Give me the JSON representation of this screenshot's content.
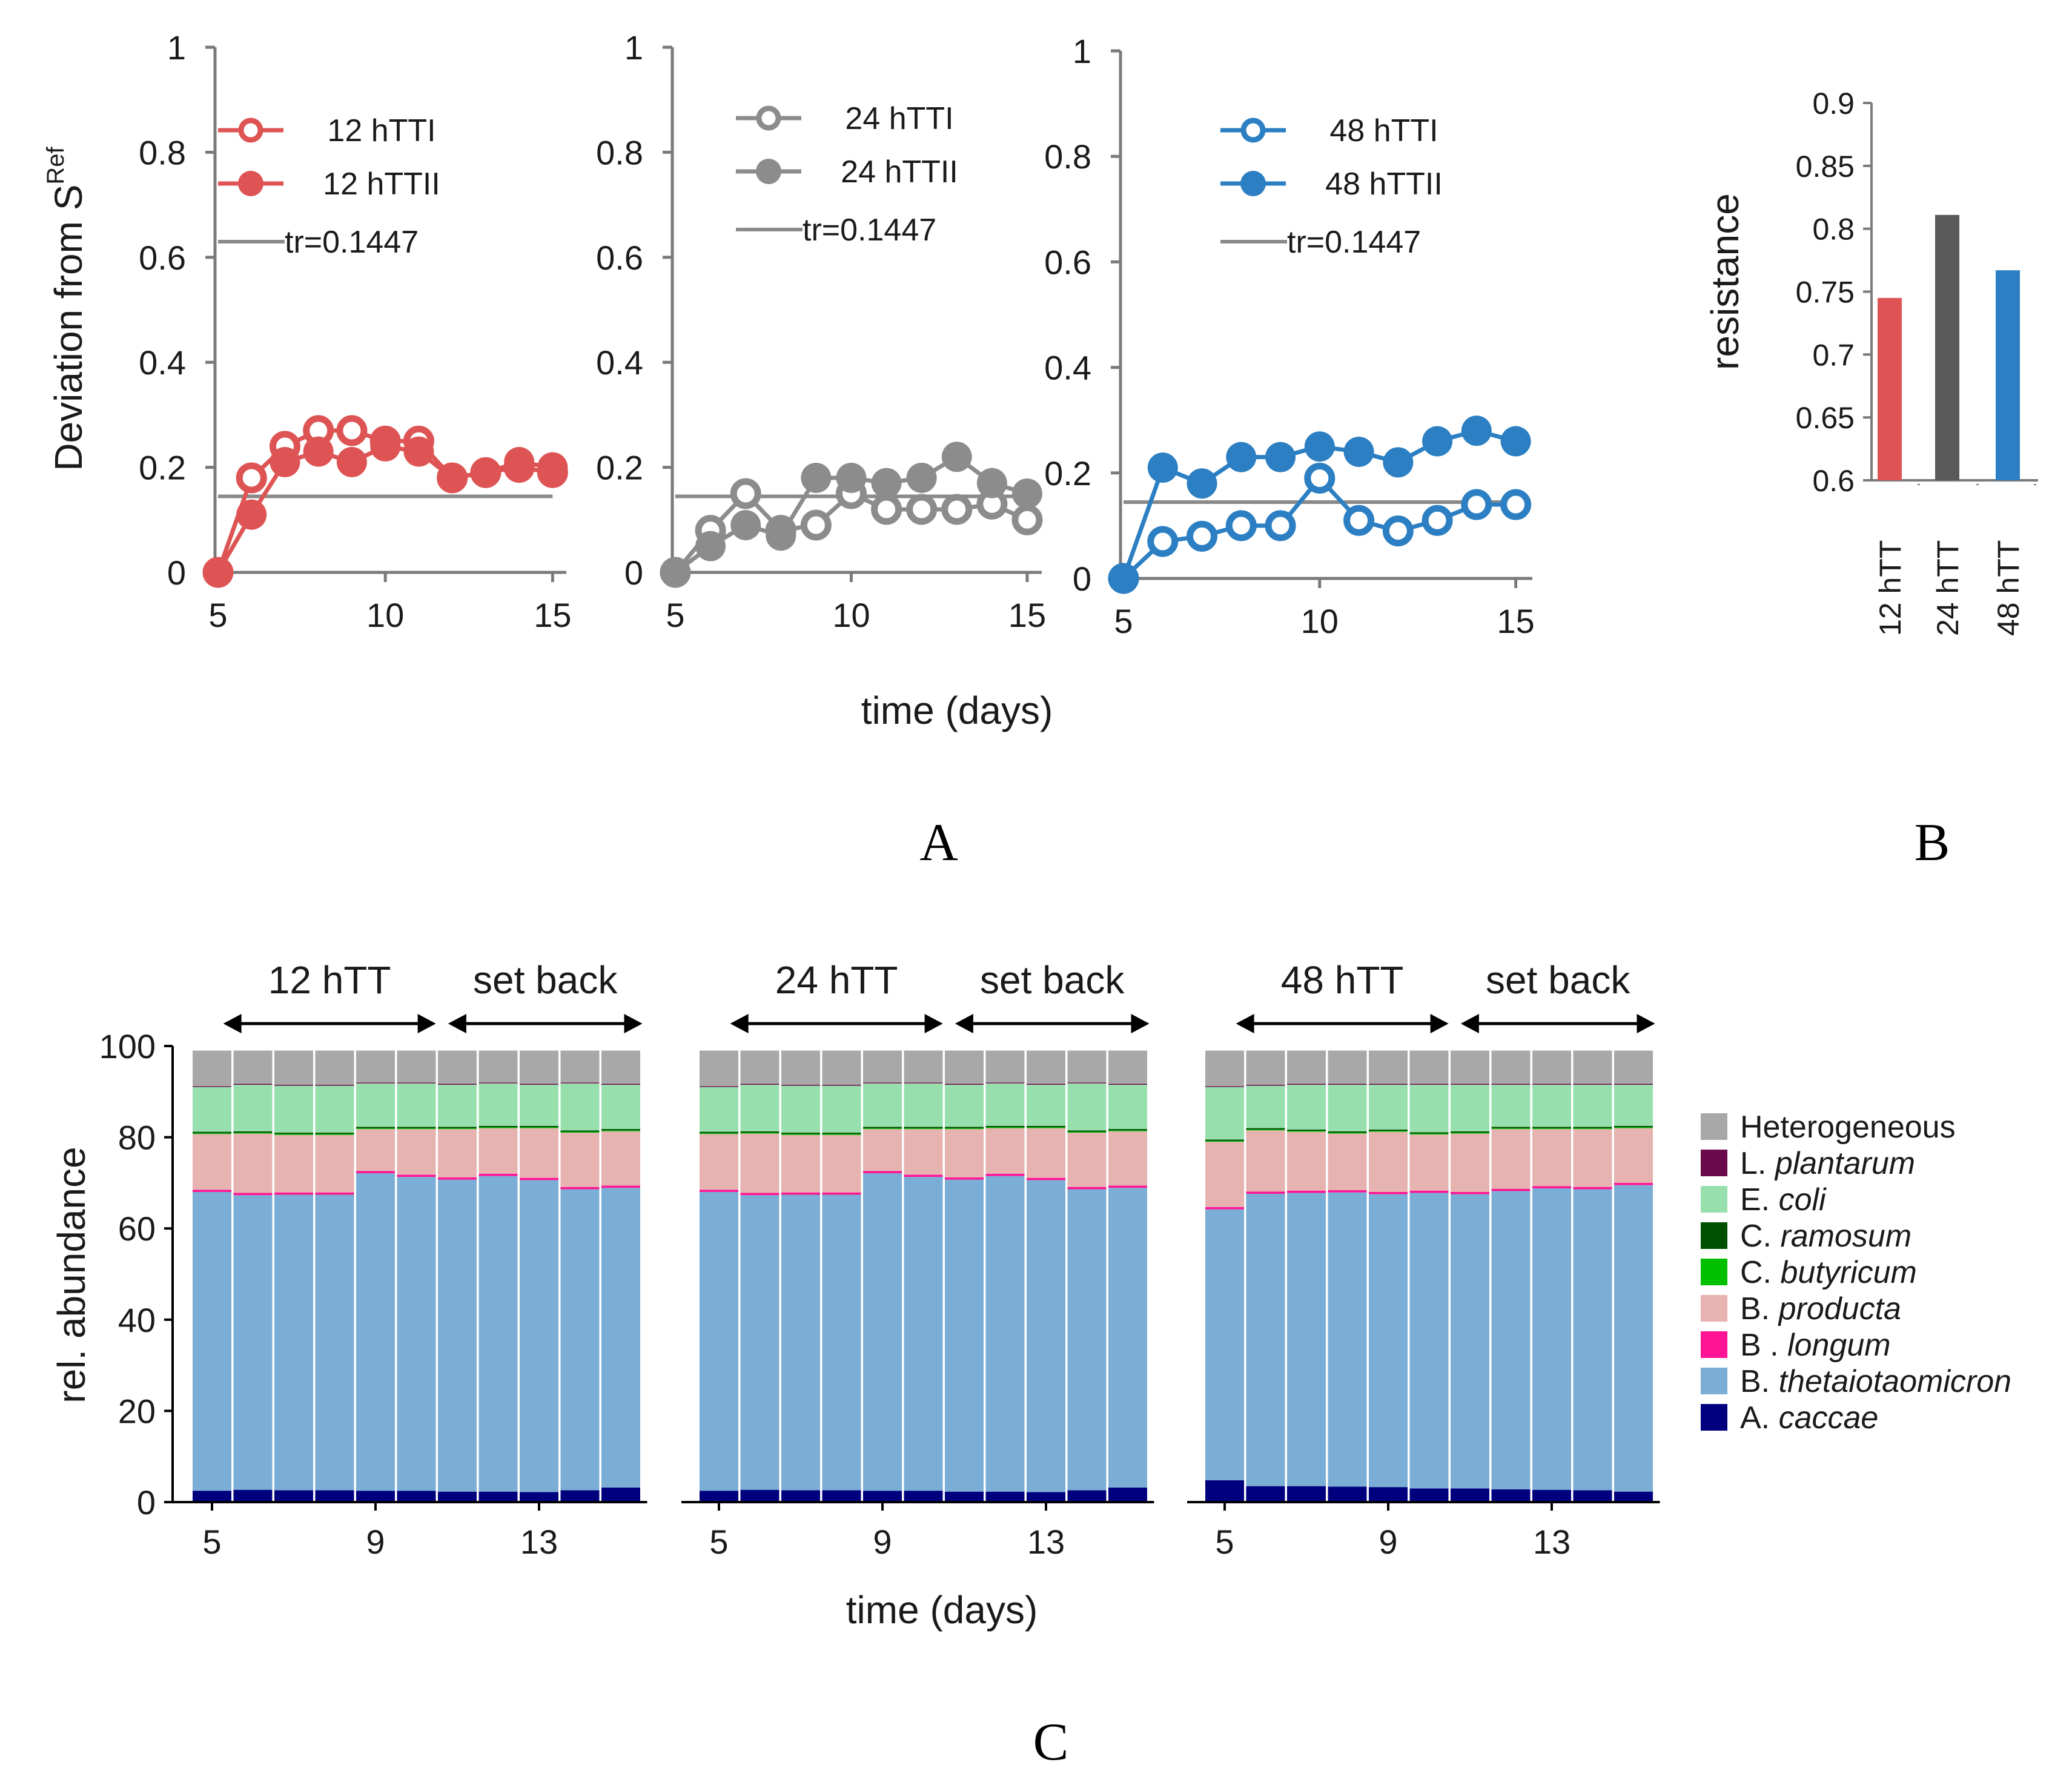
{
  "panel_letters": [
    "A",
    "B",
    "C"
  ],
  "threshold_label": "tr=0.1447",
  "chart_data": [
    {
      "type": "line",
      "panel": "A",
      "ylabel_main": "Deviation from S",
      "ylabel_sub": "Ref",
      "xlabel": "time (days)",
      "xlim": [
        5,
        15.5
      ],
      "ylim": [
        0,
        1
      ],
      "xticks": [
        5,
        10,
        15
      ],
      "yticks": [
        "0",
        "0.2",
        "0.4",
        "0.6",
        "0.8",
        "1"
      ],
      "threshold": 0.1447,
      "x": [
        5,
        6,
        7,
        8,
        9,
        10,
        11,
        12,
        13,
        14,
        15
      ],
      "subplots": [
        {
          "color": "#de5454",
          "series": [
            {
              "name": "12 hTTI",
              "marker": "open",
              "values": [
                0,
                0.18,
                0.24,
                0.27,
                0.27,
                0.25,
                0.25,
                0.18,
                0.19,
                0.2,
                0.19
              ]
            },
            {
              "name": "12 hTTII",
              "marker": "filled",
              "values": [
                0,
                0.11,
                0.21,
                0.23,
                0.21,
                0.24,
                0.23,
                0.18,
                0.19,
                0.21,
                0.2
              ]
            }
          ]
        },
        {
          "color": "#8c8c8c",
          "series": [
            {
              "name": "24 hTTI",
              "marker": "open",
              "values": [
                0,
                0.08,
                0.15,
                0.08,
                0.09,
                0.15,
                0.12,
                0.12,
                0.12,
                0.13,
                0.1
              ]
            },
            {
              "name": "24 hTTII",
              "marker": "filled",
              "values": [
                0,
                0.05,
                0.09,
                0.07,
                0.18,
                0.18,
                0.17,
                0.18,
                0.22,
                0.17,
                0.15
              ]
            }
          ]
        },
        {
          "color": "#2b7fc2",
          "series": [
            {
              "name": "48 hTTI",
              "marker": "open",
              "values": [
                0,
                0.07,
                0.08,
                0.1,
                0.1,
                0.19,
                0.11,
                0.09,
                0.11,
                0.14,
                0.14
              ]
            },
            {
              "name": "48 hTTII",
              "marker": "filled",
              "values": [
                0,
                0.21,
                0.18,
                0.23,
                0.23,
                0.25,
                0.24,
                0.22,
                0.26,
                0.28,
                0.26
              ]
            }
          ]
        }
      ]
    },
    {
      "type": "bar",
      "panel": "B",
      "ylabel": "resistance",
      "ylim": [
        0.6,
        0.9
      ],
      "yticks": [
        "0.6",
        "0.65",
        "0.7",
        "0.75",
        "0.8",
        "0.85",
        "0.9"
      ],
      "categories": [
        "12 hTT",
        "24 hTT",
        "48 hTT"
      ],
      "values": [
        0.745,
        0.811,
        0.767
      ],
      "colors": [
        "#de5454",
        "#595959",
        "#2b7fc2"
      ]
    },
    {
      "type": "bar",
      "stacked": true,
      "panel": "C",
      "ylabel": "rel. abundance",
      "xlabel": "time (days)",
      "ylim": [
        0,
        100
      ],
      "yticks": [
        "0",
        "20",
        "40",
        "60",
        "80",
        "100"
      ],
      "xticks": [
        "5",
        "9",
        "13"
      ],
      "x": [
        5,
        6,
        7,
        8,
        9,
        10,
        11,
        12,
        13,
        14,
        15
      ],
      "species": [
        {
          "name": "A. caccae",
          "genus": "A.",
          "epithet": "caccae",
          "color": "#00007f"
        },
        {
          "name": "B. thetaiotaomicron",
          "genus": "B.",
          "epithet": "thetaiotaomicron",
          "color": "#7aaed6"
        },
        {
          "name": "B .longum",
          "genus": "B .",
          "epithet": "longum",
          "color": "#ff1493"
        },
        {
          "name": "B. producta",
          "genus": "B.",
          "epithet": "producta",
          "color": "#e6b3b1"
        },
        {
          "name": "C. butyricum",
          "genus": "C.",
          "epithet": "butyricum",
          "color": "#00c000"
        },
        {
          "name": "C. ramosum",
          "genus": "C.",
          "epithet": "ramosum",
          "color": "#005000"
        },
        {
          "name": "E. coli",
          "genus": "E.",
          "epithet": "coli",
          "color": "#97e0ae"
        },
        {
          "name": "L. plantarum",
          "genus": "L.",
          "epithet": "plantarum",
          "color": "#6b0a4a"
        },
        {
          "name": "Heterogeneous",
          "genus": "Heterogeneous",
          "epithet": "",
          "color": "#a8a8a8"
        }
      ],
      "subplots": [
        {
          "label_left": "12 hTT",
          "label_right": "set back",
          "cumulative_tops": [
            [
              2.5,
              68.0,
              68.5,
              80.7,
              80.9,
              81.2,
              91.0,
              91.2,
              99
            ],
            [
              2.7,
              67.3,
              67.8,
              80.8,
              81.0,
              81.3,
              91.5,
              91.7,
              99
            ],
            [
              2.6,
              67.4,
              67.9,
              80.5,
              80.7,
              81.0,
              91.3,
              91.5,
              99
            ],
            [
              2.6,
              67.4,
              67.9,
              80.5,
              80.7,
              81.0,
              91.3,
              91.5,
              99
            ],
            [
              2.5,
              72.1,
              72.6,
              81.8,
              82.0,
              82.3,
              91.8,
              92.0,
              99
            ],
            [
              2.5,
              71.3,
              71.8,
              81.8,
              82.0,
              82.3,
              91.8,
              92.0,
              99
            ],
            [
              2.3,
              70.7,
              71.2,
              81.8,
              82.0,
              82.3,
              91.5,
              91.7,
              99
            ],
            [
              2.3,
              71.5,
              72.0,
              82.0,
              82.2,
              82.5,
              91.8,
              92.0,
              99
            ],
            [
              2.2,
              70.6,
              71.1,
              82.0,
              82.2,
              82.5,
              91.5,
              91.7,
              99
            ],
            [
              2.6,
              68.6,
              69.1,
              81.0,
              81.2,
              81.5,
              91.8,
              92.0,
              99
            ],
            [
              3.2,
              68.9,
              69.4,
              81.3,
              81.5,
              81.8,
              91.5,
              91.7,
              99
            ]
          ]
        },
        {
          "label_left": "24 hTT",
          "label_right": "set back",
          "cumulative_tops": [
            [
              2.5,
              68.0,
              68.5,
              80.7,
              80.9,
              81.2,
              91.0,
              91.2,
              99
            ],
            [
              2.7,
              67.3,
              67.8,
              80.8,
              81.0,
              81.3,
              91.5,
              91.7,
              99
            ],
            [
              2.6,
              67.4,
              67.9,
              80.5,
              80.7,
              81.0,
              91.3,
              91.5,
              99
            ],
            [
              2.6,
              67.4,
              67.9,
              80.5,
              80.7,
              81.0,
              91.3,
              91.5,
              99
            ],
            [
              2.5,
              72.1,
              72.6,
              81.8,
              82.0,
              82.3,
              91.8,
              92.0,
              99
            ],
            [
              2.5,
              71.3,
              71.8,
              81.8,
              82.0,
              82.3,
              91.8,
              92.0,
              99
            ],
            [
              2.3,
              70.7,
              71.2,
              81.8,
              82.0,
              82.3,
              91.5,
              91.7,
              99
            ],
            [
              2.3,
              71.5,
              72.0,
              82.0,
              82.2,
              82.5,
              91.8,
              92.0,
              99
            ],
            [
              2.2,
              70.6,
              71.1,
              82.0,
              82.2,
              82.5,
              91.5,
              91.7,
              99
            ],
            [
              2.6,
              68.6,
              69.1,
              81.0,
              81.2,
              81.5,
              91.8,
              92.0,
              99
            ],
            [
              3.2,
              68.9,
              69.4,
              81.3,
              81.5,
              81.8,
              91.5,
              91.7,
              99
            ]
          ]
        },
        {
          "label_left": "48 hTT",
          "label_right": "set back",
          "cumulative_tops": [
            [
              4.8,
              64.2,
              64.7,
              79.0,
              79.2,
              79.5,
              91.0,
              91.2,
              99
            ],
            [
              3.5,
              67.6,
              68.1,
              81.5,
              81.7,
              82.0,
              91.3,
              91.5,
              99
            ],
            [
              3.5,
              67.8,
              68.3,
              81.2,
              81.4,
              81.7,
              91.5,
              91.7,
              99
            ],
            [
              3.4,
              67.9,
              68.4,
              80.8,
              81.0,
              81.3,
              91.5,
              91.7,
              99
            ],
            [
              3.3,
              67.5,
              68.0,
              81.2,
              81.4,
              81.7,
              91.5,
              91.7,
              99
            ],
            [
              3.0,
              67.8,
              68.3,
              80.6,
              80.8,
              81.1,
              91.5,
              91.7,
              99
            ],
            [
              3.0,
              67.5,
              68.0,
              80.8,
              81.0,
              81.3,
              91.5,
              91.7,
              99
            ],
            [
              2.8,
              68.2,
              68.7,
              81.8,
              82.0,
              82.3,
              91.5,
              91.7,
              99
            ],
            [
              2.7,
              68.8,
              69.3,
              81.8,
              82.0,
              82.3,
              91.5,
              91.7,
              99
            ],
            [
              2.6,
              68.6,
              69.1,
              81.8,
              82.0,
              82.3,
              91.5,
              91.7,
              99
            ],
            [
              2.3,
              69.5,
              70.0,
              82.0,
              82.2,
              82.5,
              91.5,
              91.7,
              99
            ]
          ]
        }
      ]
    }
  ]
}
